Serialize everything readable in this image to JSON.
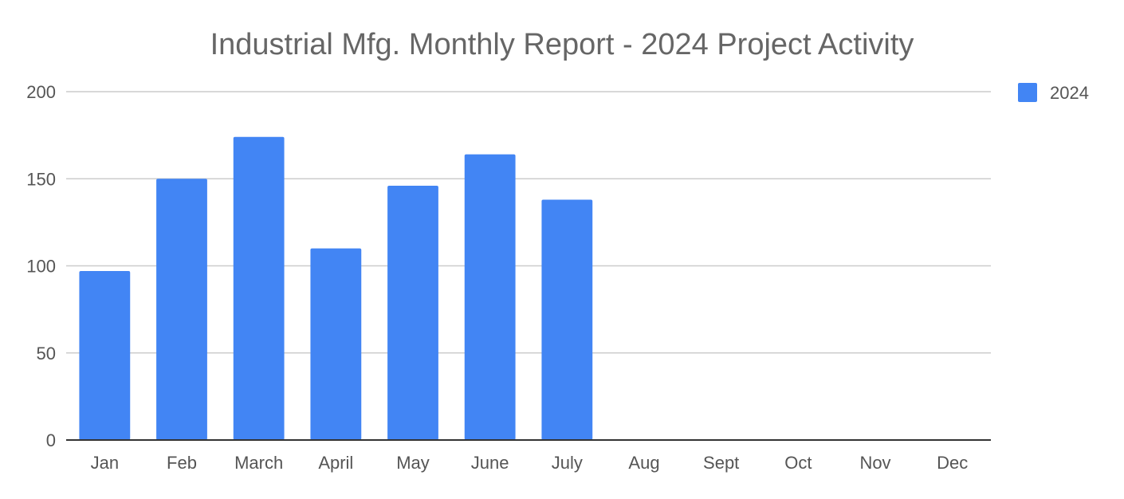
{
  "chart_data": {
    "type": "bar",
    "title": "Industrial Mfg. Monthly Report - 2024 Project Activity",
    "categories": [
      "Jan",
      "Feb",
      "March",
      "April",
      "May",
      "June",
      "July",
      "Aug",
      "Sept",
      "Oct",
      "Nov",
      "Dec"
    ],
    "series": [
      {
        "name": "2024",
        "color": "#4285F4",
        "values": [
          97,
          150,
          174,
          110,
          146,
          164,
          138,
          null,
          null,
          null,
          null,
          null
        ]
      }
    ],
    "ylim": [
      0,
      200
    ],
    "yticks": [
      "0",
      "50",
      "100",
      "150",
      "200"
    ],
    "grid": true,
    "legend_position": "top-right"
  }
}
